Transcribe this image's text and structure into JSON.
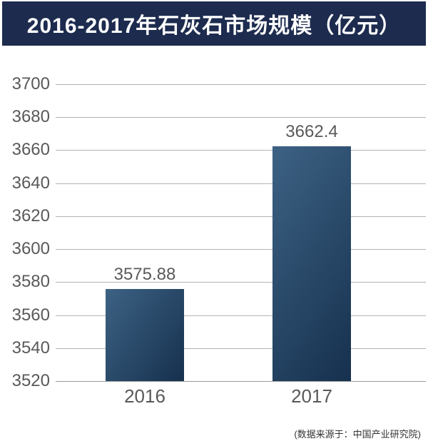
{
  "header": {
    "title": "2016-2017年石灰石市场规模（亿元）",
    "bg_color": "#1c2b4e",
    "text_color": "#ffffff"
  },
  "chart_data": {
    "type": "bar",
    "title": "2016-2017年石灰石市场规模（亿元）",
    "categories": [
      "2016",
      "2017"
    ],
    "values": [
      3575.88,
      3662.4
    ],
    "value_labels": [
      "3575.88",
      "3662.4"
    ],
    "xlabel": "",
    "ylabel": "",
    "ylim": [
      3520,
      3700
    ],
    "ytick_step": 20,
    "ytick_labels": [
      "3520",
      "3540",
      "3560",
      "3580",
      "3600",
      "3620",
      "3640",
      "3660",
      "3680",
      "3700"
    ],
    "grid": true,
    "legend": false,
    "colors": {
      "bar_gradient_start": "#3d6284",
      "bar_gradient_end": "#16304e",
      "gridline": "#b3b3b3",
      "axis_label": "#595959"
    }
  },
  "footer": {
    "source_note": "(数据来源于：中国产业研究院)"
  }
}
